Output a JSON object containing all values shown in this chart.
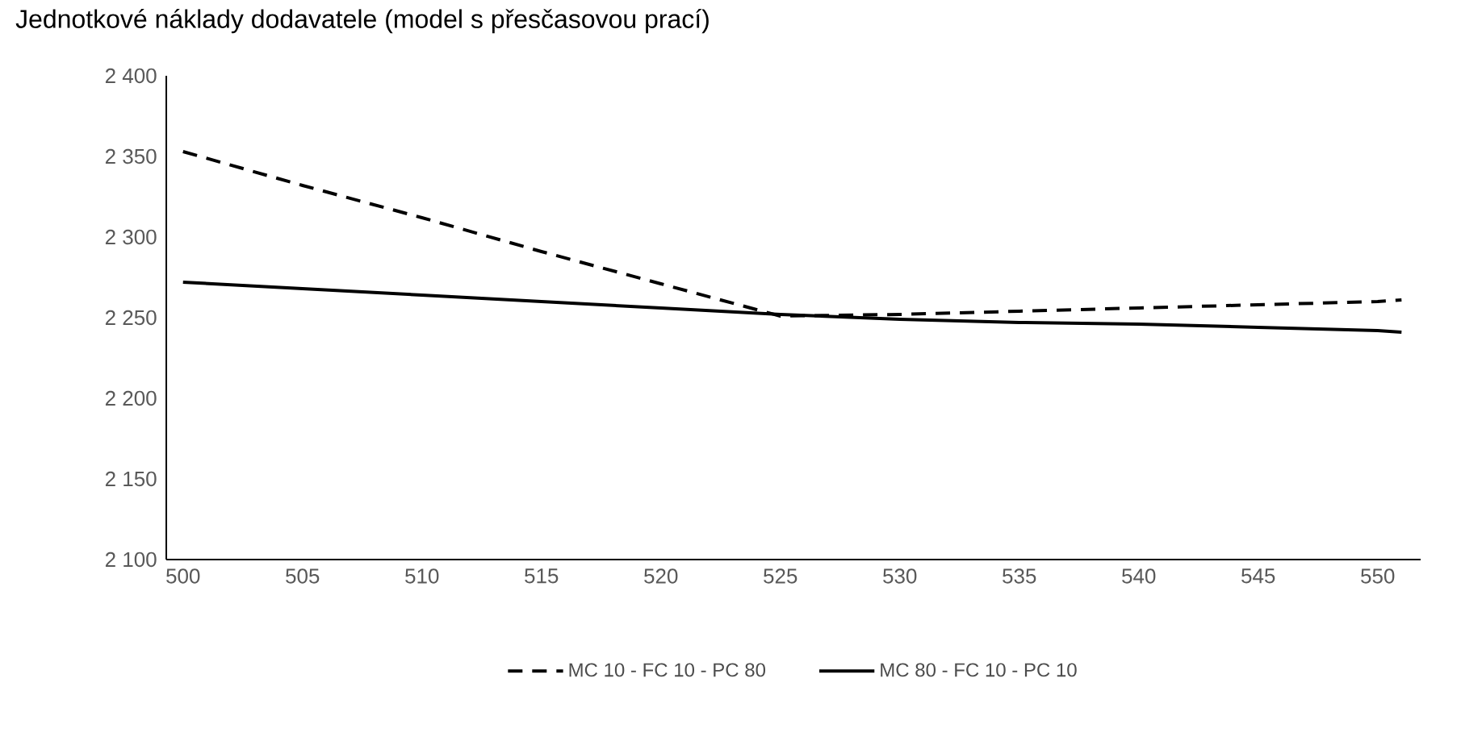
{
  "chart_data": {
    "type": "line",
    "title": "Jednotkové náklady dodavatele (model s přesčasovou prací)",
    "x": [
      500,
      505,
      510,
      515,
      520,
      525,
      530,
      535,
      540,
      545,
      550,
      551
    ],
    "series": [
      {
        "name": "MC 10 - FC 10 - PC 80",
        "color": "#000000",
        "line_style": "dashed",
        "values": [
          2353,
          2332,
          2312,
          2291,
          2271,
          2251,
          2252,
          2254,
          2256,
          2258,
          2260,
          2261
        ]
      },
      {
        "name": "MC 80 - FC 10 - PC 10",
        "color": "#000000",
        "line_style": "solid",
        "values": [
          2272,
          2268,
          2264,
          2260,
          2256,
          2252,
          2249,
          2247,
          2246,
          2244,
          2242,
          2241
        ]
      }
    ],
    "xlim": [
      499.3,
      551.8
    ],
    "xticks": [
      500,
      505,
      510,
      515,
      520,
      525,
      530,
      535,
      540,
      545,
      550
    ],
    "ylim": [
      2100,
      2400
    ],
    "yticks": [
      {
        "value": 2100,
        "label": "2 100"
      },
      {
        "value": 2150,
        "label": "2 150"
      },
      {
        "value": 2200,
        "label": "2 200"
      },
      {
        "value": 2250,
        "label": "2 250"
      },
      {
        "value": 2300,
        "label": "2 300"
      },
      {
        "value": 2350,
        "label": "2 350"
      },
      {
        "value": 2400,
        "label": "2 400"
      }
    ],
    "grid": false,
    "legend": "bottom",
    "marker": "none"
  }
}
